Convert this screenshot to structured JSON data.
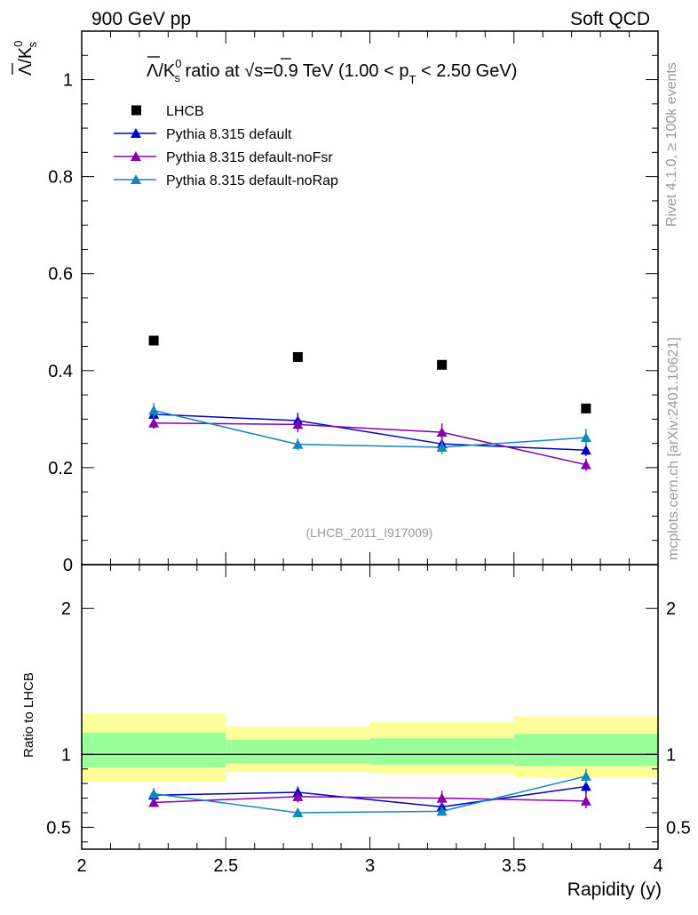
{
  "header": {
    "left": "900 GeV pp",
    "right": "Soft QCD"
  },
  "side": {
    "rivet": "Rivet 4.1.0, ≥ 100k events",
    "mcplots": "mcplots.cern.ch [arXiv:2401.10621]"
  },
  "colors": {
    "data": "#000000",
    "default": "#0000cc",
    "noFsr": "#8800aa",
    "noRap": "#1188bb",
    "band_inner": "#99ff99",
    "band_outer": "#ffff99"
  },
  "chart_data": [
    {
      "type": "line",
      "title": "Λ̅/K⁰s ratio at √s=0.9 TeV (1.00 < pT < 2.50 GeV)",
      "title_parts": {
        "lam": "Λ",
        "k": "/K",
        "sup": "0",
        "sub": "s",
        "mid": " ratio at ",
        "sqrt": "√",
        "s": "s=0.9 TeV (1.00 < p",
        "t": "T",
        "end": " < 2.50 GeV)"
      },
      "ylabel_parts": {
        "lam": "Λ",
        "k": "/K",
        "sup": "0",
        "sub": "s"
      },
      "watermark": "(LHCB_2011_I917009)",
      "xlim": [
        2,
        4
      ],
      "ylim": [
        0,
        1.1
      ],
      "yticks": [
        {
          "v": 0,
          "label": "0"
        },
        {
          "v": 0.2,
          "label": "0.2"
        },
        {
          "v": 0.4,
          "label": "0.4"
        },
        {
          "v": 0.6,
          "label": "0.6"
        },
        {
          "v": 0.8,
          "label": "0.8"
        },
        {
          "v": 1,
          "label": "1"
        }
      ],
      "x": [
        2.25,
        2.75,
        3.25,
        3.75
      ],
      "x_bins": [
        [
          2.0,
          2.5
        ],
        [
          2.5,
          3.0
        ],
        [
          3.0,
          3.5
        ],
        [
          3.5,
          4.0
        ]
      ],
      "series": [
        {
          "name": "LHCB",
          "key": "data",
          "marker": "square",
          "values": [
            0.462,
            0.428,
            0.412,
            0.322
          ],
          "errors": [
            0,
            0,
            0,
            0
          ]
        },
        {
          "name": "Pythia 8.315 default",
          "key": "default",
          "marker": "triangle",
          "values": [
            0.31,
            0.297,
            0.249,
            0.236
          ],
          "errors": [
            0.012,
            0.016,
            0.014,
            0.012
          ]
        },
        {
          "name": "Pythia 8.315 default-noFsr",
          "key": "noFsr",
          "marker": "triangle",
          "values": [
            0.292,
            0.289,
            0.273,
            0.206
          ],
          "errors": [
            0.012,
            0.016,
            0.018,
            0.013
          ]
        },
        {
          "name": "Pythia 8.315 default-noRap",
          "key": "noRap",
          "marker": "triangle",
          "values": [
            0.318,
            0.248,
            0.242,
            0.262
          ],
          "errors": [
            0.015,
            0.012,
            0.014,
            0.018
          ]
        }
      ]
    },
    {
      "type": "line",
      "ylabel": "Ratio to LHCB",
      "xlabel": "Rapidity (y)",
      "xlim": [
        2,
        4
      ],
      "ylim": [
        0.35,
        2.3
      ],
      "xticks": [
        {
          "v": 2,
          "label": "2"
        },
        {
          "v": 2.5,
          "label": "2.5"
        },
        {
          "v": 3,
          "label": "3"
        },
        {
          "v": 3.5,
          "label": "3.5"
        },
        {
          "v": 4,
          "label": "4"
        }
      ],
      "yticks": [
        {
          "v": 0.5,
          "label": "0.5"
        },
        {
          "v": 1,
          "label": "1"
        },
        {
          "v": 2,
          "label": "2"
        }
      ],
      "bands": [
        {
          "x": [
            2.0,
            2.5
          ],
          "inner": [
            0.91,
            1.15
          ],
          "outer": [
            0.81,
            1.28
          ]
        },
        {
          "x": [
            2.5,
            3.0
          ],
          "inner": [
            0.94,
            1.1
          ],
          "outer": [
            0.88,
            1.19
          ]
        },
        {
          "x": [
            3.0,
            3.5
          ],
          "inner": [
            0.93,
            1.11
          ],
          "outer": [
            0.87,
            1.22
          ]
        },
        {
          "x": [
            3.5,
            4.0
          ],
          "inner": [
            0.92,
            1.14
          ],
          "outer": [
            0.84,
            1.26
          ]
        }
      ],
      "x": [
        2.25,
        2.75,
        3.25,
        3.75
      ],
      "series": [
        {
          "name": "Pythia 8.315 default",
          "key": "default",
          "values": [
            0.72,
            0.74,
            0.64,
            0.78
          ],
          "errors": [
            0.03,
            0.04,
            0.04,
            0.05
          ]
        },
        {
          "name": "Pythia 8.315 default-noFsr",
          "key": "noFsr",
          "values": [
            0.67,
            0.71,
            0.7,
            0.68
          ],
          "errors": [
            0.03,
            0.04,
            0.05,
            0.05
          ]
        },
        {
          "name": "Pythia 8.315 default-noRap",
          "key": "noRap",
          "values": [
            0.73,
            0.6,
            0.61,
            0.85
          ],
          "errors": [
            0.04,
            0.03,
            0.03,
            0.05
          ]
        }
      ]
    }
  ]
}
